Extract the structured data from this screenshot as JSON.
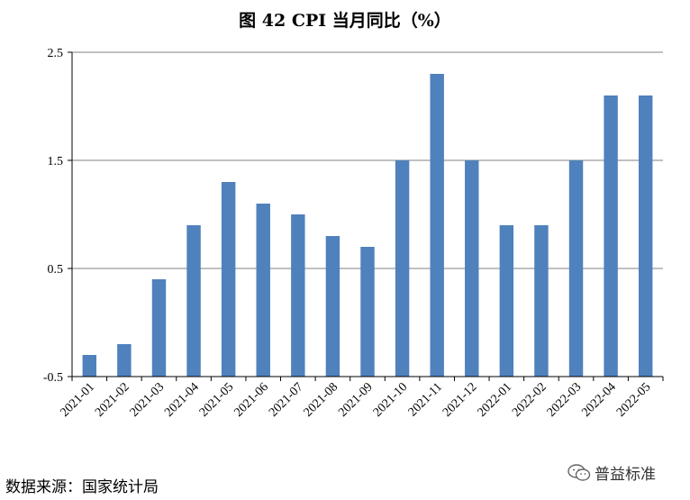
{
  "title": "图 42 CPI 当月同比（%）",
  "source": "数据来源：国家统计局",
  "watermark": "普益标准",
  "colors": {
    "bar": "#4F81BD",
    "grid": "#808080",
    "axis": "#000000"
  },
  "chart_data": {
    "type": "bar",
    "title": "图 42 CPI 当月同比（%）",
    "categories": [
      "2021-01",
      "2021-02",
      "2021-03",
      "2021-04",
      "2021-05",
      "2021-06",
      "2021-07",
      "2021-08",
      "2021-09",
      "2021-10",
      "2021-11",
      "2021-12",
      "2022-01",
      "2022-02",
      "2022-03",
      "2022-04",
      "2022-05"
    ],
    "values": [
      -0.3,
      -0.2,
      0.4,
      0.9,
      1.3,
      1.1,
      1.0,
      0.8,
      0.7,
      1.5,
      2.3,
      1.5,
      0.9,
      0.9,
      1.5,
      2.1,
      2.1
    ],
    "ylim": [
      -0.5,
      2.5
    ],
    "yticks": [
      "2.5",
      "1.5",
      "0.5",
      "-0.5"
    ],
    "ytick_values": [
      2.5,
      1.5,
      0.5,
      -0.5
    ],
    "grid": true,
    "xlabel": "",
    "ylabel": ""
  }
}
